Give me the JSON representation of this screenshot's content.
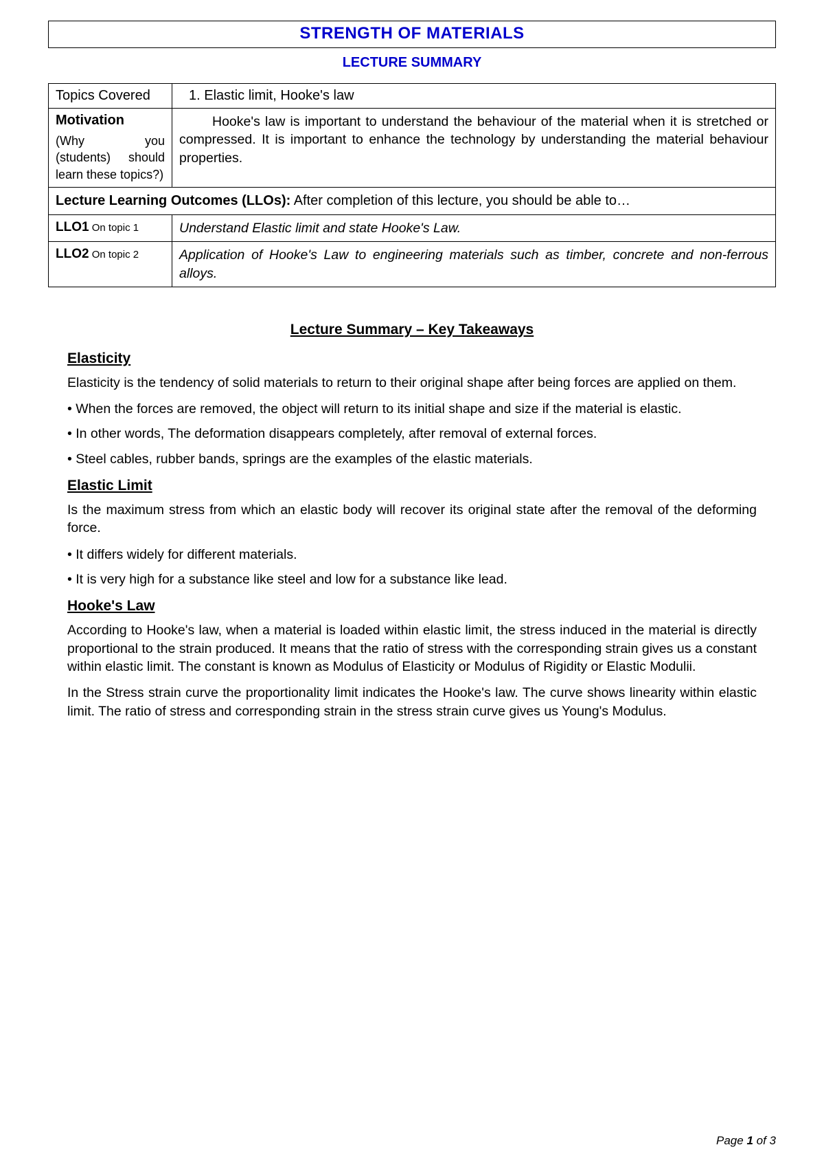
{
  "header": {
    "title": "STRENGTH OF MATERIALS",
    "subtitle": "LECTURE SUMMARY"
  },
  "table": {
    "topics_label": "Topics Covered",
    "topics_value": "1. Elastic limit, Hooke's law",
    "motivation_label": "Motivation",
    "motivation_sub": "(Why you (students) should learn these topics?)",
    "motivation_text": "Hooke's law is important to understand the behaviour of the material when it is stretched or compressed. It is important to enhance the technology by understanding the material behaviour properties.",
    "llo_header_bold": "Lecture Learning Outcomes (LLOs):",
    "llo_header_rest": " After completion of this lecture, you should be able to…",
    "llo1_label": "LLO1",
    "llo1_sub": " On topic 1",
    "llo1_text": "Understand Elastic limit and state Hooke's Law.",
    "llo2_label": "LLO2",
    "llo2_sub": " On topic 2",
    "llo2_text": "Application of Hooke's Law to engineering materials such as timber, concrete and non-ferrous alloys."
  },
  "body": {
    "key_takeaways": "Lecture Summary – Key Takeaways",
    "s1_head": "Elasticity",
    "s1_p1": "Elasticity is the tendency of solid materials to return to their original shape after being forces are applied on them.",
    "s1_b1": "• When the forces are removed, the object will return to its initial shape and size if the material is elastic.",
    "s1_b2": "• In other words, The deformation disappears completely, after removal of external forces.",
    "s1_b3": "• Steel cables, rubber bands, springs are the examples of the elastic materials.",
    "s2_head": "Elastic Limit",
    "s2_p1": "Is the maximum stress from which an elastic body will recover its original state after the removal of the deforming force.",
    "s2_b1": "• It differs widely for different materials.",
    "s2_b2": "• It is very high for a substance like steel and low for a substance like lead.",
    "s3_head": "Hooke's Law",
    "s3_p1": "According to Hooke's law, when a material is loaded within elastic limit, the stress induced in the material is directly proportional to the strain produced. It means that the ratio of stress with the corresponding strain gives us a constant within elastic limit. The constant is known as Modulus of Elasticity or Modulus of Rigidity or Elastic Modulii.",
    "s3_p2": "In the Stress strain curve the proportionality limit indicates the Hooke's law. The curve shows linearity within elastic limit. The ratio of stress and corresponding strain in the stress strain curve gives us Young's Modulus."
  },
  "footer": {
    "prefix": "Page ",
    "num": "1",
    "suffix": " of 3"
  }
}
